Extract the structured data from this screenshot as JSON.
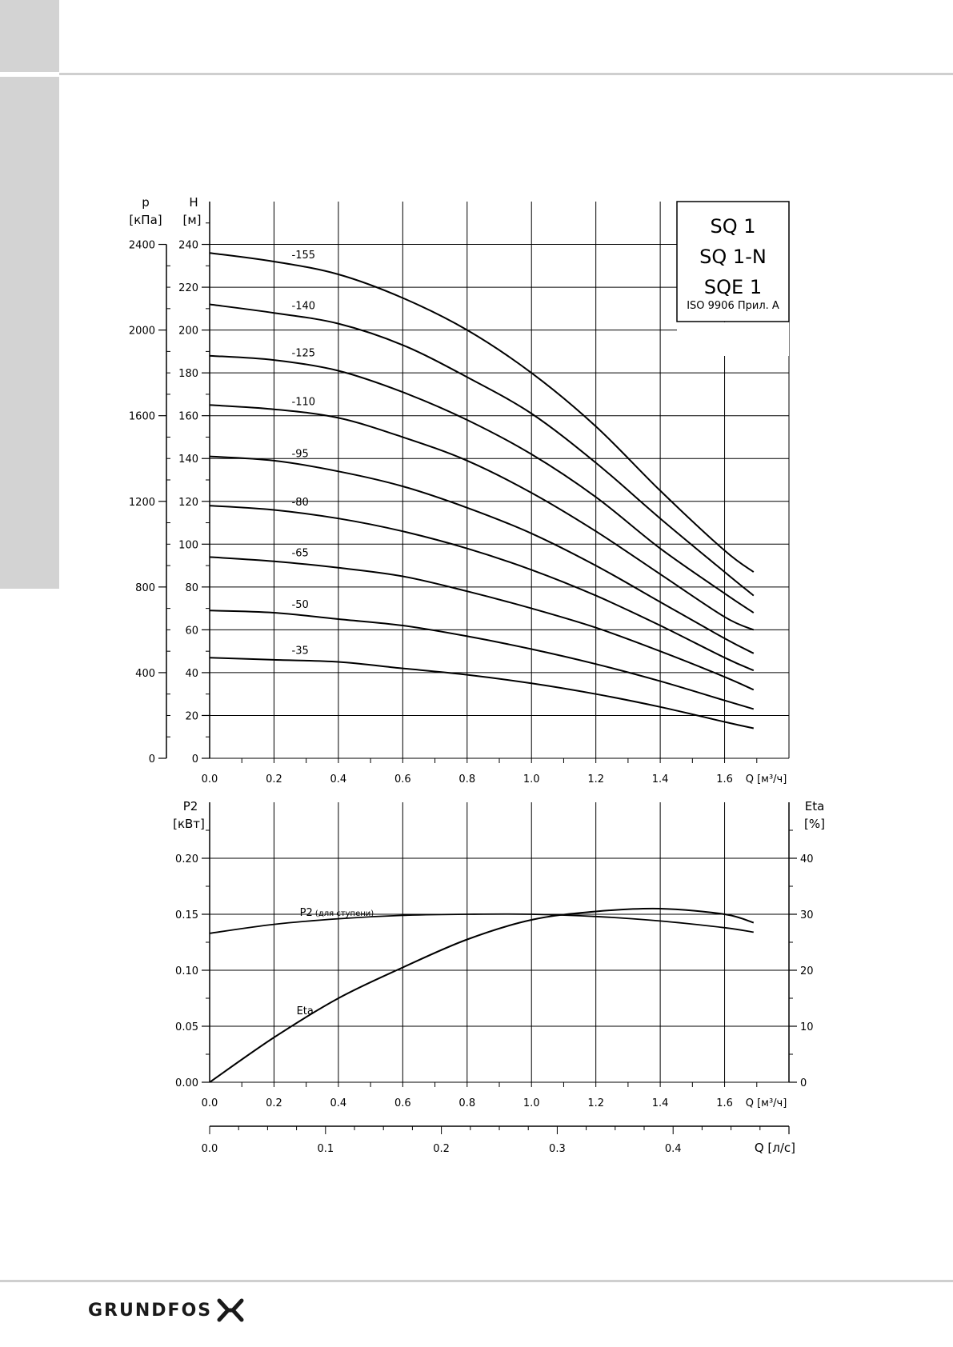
{
  "brand": {
    "name": "GRUNDFOS"
  },
  "chart_data": [
    {
      "type": "line",
      "title_lines": [
        "SQ 1",
        "SQ 1-N",
        "SQE 1"
      ],
      "standard_note": "ISO 9906 Прил.  A",
      "xlabel": "Q [м³/ч]",
      "ylabel_left_top": "p",
      "ylabel_left_unit": "[кПа]",
      "ylabel_top": "H",
      "ylabel_unit": "[м]",
      "xlim": [
        0,
        1.8
      ],
      "ylim": [
        0,
        260
      ],
      "pressure_lim": [
        0,
        2600
      ],
      "x_ticks": [
        "0.0",
        "0.2",
        "0.4",
        "0.6",
        "0.8",
        "1.0",
        "1.2",
        "1.4",
        "1.6"
      ],
      "y_ticks": [
        "0",
        "20",
        "40",
        "60",
        "80",
        "100",
        "120",
        "140",
        "160",
        "180",
        "200",
        "220",
        "240"
      ],
      "pressure_ticks": [
        "0",
        "400",
        "800",
        "1200",
        "1600",
        "2000",
        "2400"
      ],
      "grid": true,
      "series": [
        {
          "name": "-155",
          "x": [
            0,
            0.2,
            0.4,
            0.6,
            0.8,
            1.0,
            1.2,
            1.4,
            1.6,
            1.69
          ],
          "y": [
            236,
            232,
            226,
            215,
            200,
            180,
            155,
            125,
            97,
            87
          ]
        },
        {
          "name": "-140",
          "x": [
            0,
            0.2,
            0.4,
            0.6,
            0.8,
            1.0,
            1.2,
            1.4,
            1.6,
            1.69
          ],
          "y": [
            212,
            208,
            203,
            193,
            178,
            161,
            138,
            112,
            87,
            76
          ]
        },
        {
          "name": "-125",
          "x": [
            0,
            0.2,
            0.4,
            0.6,
            0.8,
            1.0,
            1.2,
            1.4,
            1.6,
            1.69
          ],
          "y": [
            188,
            186,
            181,
            171,
            158,
            142,
            122,
            98,
            77,
            68
          ]
        },
        {
          "name": "-110",
          "x": [
            0,
            0.2,
            0.4,
            0.6,
            0.8,
            1.0,
            1.2,
            1.4,
            1.6,
            1.69
          ],
          "y": [
            165,
            163,
            159,
            150,
            139,
            124,
            106,
            86,
            66,
            60
          ]
        },
        {
          "name": "-95",
          "x": [
            0,
            0.2,
            0.4,
            0.6,
            0.8,
            1.0,
            1.2,
            1.4,
            1.6,
            1.69
          ],
          "y": [
            141,
            139,
            134,
            127,
            117,
            105,
            90,
            73,
            56,
            49
          ]
        },
        {
          "name": "-80",
          "x": [
            0,
            0.2,
            0.4,
            0.6,
            0.8,
            1.0,
            1.2,
            1.4,
            1.6,
            1.69
          ],
          "y": [
            118,
            116,
            112,
            106,
            98,
            88,
            76,
            62,
            47,
            41
          ]
        },
        {
          "name": "-65",
          "x": [
            0,
            0.2,
            0.4,
            0.6,
            0.8,
            1.0,
            1.2,
            1.4,
            1.6,
            1.69
          ],
          "y": [
            94,
            92,
            89,
            85,
            78,
            70,
            61,
            50,
            38,
            32
          ]
        },
        {
          "name": "-50",
          "x": [
            0,
            0.2,
            0.4,
            0.6,
            0.8,
            1.0,
            1.2,
            1.4,
            1.6,
            1.69
          ],
          "y": [
            69,
            68,
            65,
            62,
            57,
            51,
            44,
            36,
            27,
            23
          ]
        },
        {
          "name": "-35",
          "x": [
            0,
            0.2,
            0.4,
            0.6,
            0.8,
            1.0,
            1.2,
            1.4,
            1.6,
            1.69
          ],
          "y": [
            47,
            46,
            45,
            42,
            39,
            35,
            30,
            24,
            17,
            14
          ]
        }
      ]
    },
    {
      "type": "line",
      "xlabel": "Q [м³/ч]",
      "ylabel_left_top": "P2",
      "ylabel_left_unit": "[кВт]",
      "ylabel_right_top": "Eta",
      "ylabel_right_unit": "[%]",
      "xlim": [
        0,
        1.8
      ],
      "ylim": [
        0,
        0.25
      ],
      "ylim_right": [
        0,
        50
      ],
      "x_ticks": [
        "0.0",
        "0.2",
        "0.4",
        "0.6",
        "0.8",
        "1.0",
        "1.2",
        "1.4",
        "1.6"
      ],
      "y_ticks": [
        "0.00",
        "0.05",
        "0.10",
        "0.15",
        "0.20"
      ],
      "y_ticks_right": [
        "0",
        "10",
        "20",
        "30",
        "40"
      ],
      "grid": true,
      "series": [
        {
          "name": "P2",
          "name_note": "(для ступени)",
          "axis": "left",
          "x": [
            0,
            0.2,
            0.4,
            0.6,
            0.8,
            1.0,
            1.2,
            1.4,
            1.6,
            1.69
          ],
          "y": [
            0.133,
            0.141,
            0.146,
            0.149,
            0.15,
            0.15,
            0.148,
            0.144,
            0.138,
            0.134
          ]
        },
        {
          "name": "Eta",
          "axis": "right",
          "x": [
            0,
            0.2,
            0.4,
            0.6,
            0.8,
            1.0,
            1.2,
            1.4,
            1.6,
            1.69
          ],
          "y": [
            0,
            8,
            15,
            20.5,
            25.5,
            29,
            30.5,
            31,
            30,
            28.5
          ]
        }
      ],
      "secondary_x_axis": {
        "label": "Q [л/с]",
        "lim": [
          0,
          0.5
        ],
        "ticks": [
          "0.0",
          "0.1",
          "0.2",
          "0.3",
          "0.4"
        ]
      }
    }
  ]
}
